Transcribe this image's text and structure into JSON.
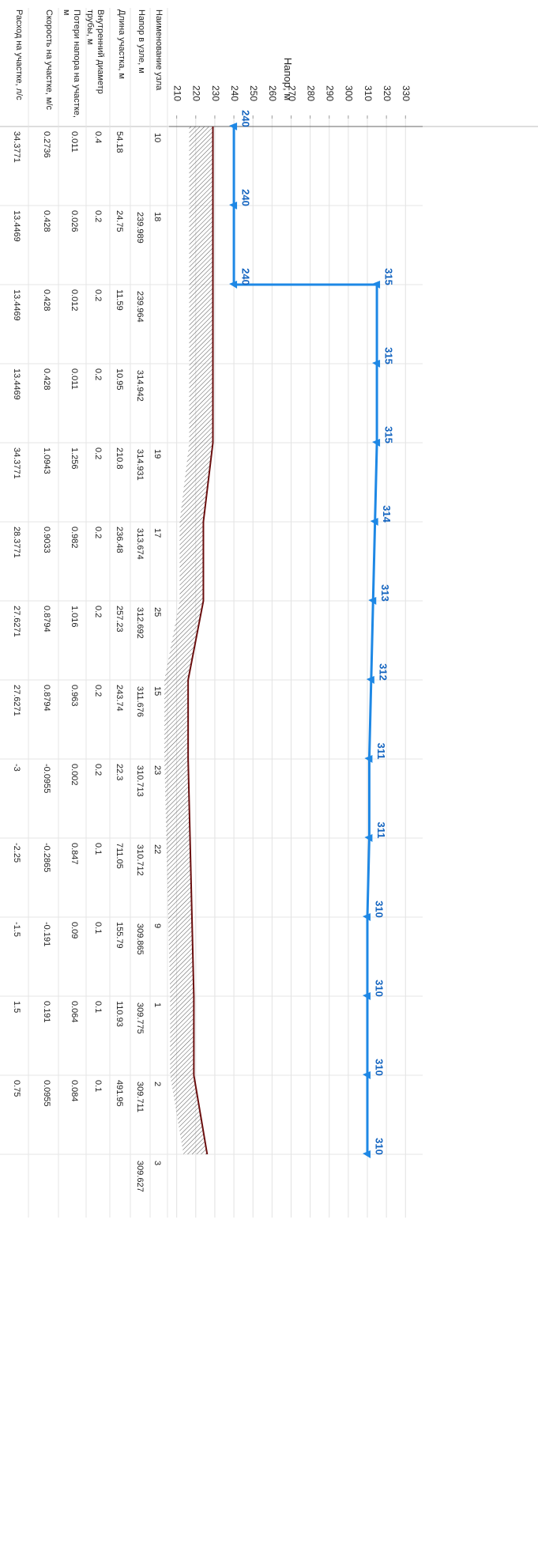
{
  "chart_data": {
    "type": "profile",
    "axis_label": "Напор, м",
    "xlim": [
      206,
      339
    ],
    "xticks": [
      210,
      220,
      230,
      240,
      250,
      260,
      270,
      280,
      290,
      300,
      310,
      320,
      330
    ],
    "grid": true,
    "head_color": "#1e88e5",
    "ground_color": "#6b0f0f",
    "head_profile": [
      [
        240
      ],
      [
        240
      ],
      [
        240,
        315
      ],
      [
        315
      ],
      [
        315
      ],
      [
        314
      ],
      [
        313
      ],
      [
        312
      ],
      [
        311
      ],
      [
        311
      ],
      [
        310
      ],
      [
        310
      ],
      [
        310
      ],
      [
        310
      ]
    ],
    "ground": [
      229,
      229,
      229,
      229,
      229,
      224,
      224,
      216,
      216,
      217,
      218,
      219,
      219,
      226
    ]
  },
  "table": {
    "headers": [
      "Наименование узла",
      "Напор в узле, м",
      "Длина участка, м",
      "Внутренний диаметр трубы, м",
      "Потери напора на участке, м",
      "Скорость на участке, м/с",
      "Расход на участке, л/с"
    ],
    "node_names": [
      "10",
      "18",
      null,
      null,
      "19",
      "17",
      "25",
      "15",
      "23",
      "22",
      "9",
      "1",
      "2",
      "3"
    ],
    "node_heads": [
      null,
      239.989,
      239.964,
      314.942,
      314.931,
      313.674,
      312.692,
      311.676,
      310.713,
      310.712,
      309.865,
      309.775,
      309.711,
      309.627
    ],
    "segments": [
      [
        54.18,
        0.4,
        0.011,
        0.2736,
        34.3771
      ],
      [
        24.75,
        0.2,
        0.026,
        0.428,
        13.4469
      ],
      [
        11.59,
        0.2,
        0.012,
        0.428,
        13.4469
      ],
      [
        10.95,
        0.2,
        0.011,
        0.428,
        13.4469
      ],
      [
        210.8,
        0.2,
        1.256,
        1.0943,
        34.3771
      ],
      [
        236.48,
        0.2,
        0.982,
        0.9033,
        28.3771
      ],
      [
        257.23,
        0.2,
        1.016,
        0.8794,
        27.6271
      ],
      [
        243.74,
        0.2,
        0.963,
        0.8794,
        27.6271
      ],
      [
        22.3,
        0.2,
        0.002,
        -0.0955,
        -3
      ],
      [
        711.05,
        0.1,
        0.847,
        -0.2865,
        -2.25
      ],
      [
        155.79,
        0.1,
        0.09,
        -0.191,
        -1.5
      ],
      [
        110.93,
        0.1,
        0.064,
        0.191,
        1.5
      ],
      [
        491.95,
        0.1,
        0.084,
        0.0955,
        0.75
      ]
    ]
  }
}
